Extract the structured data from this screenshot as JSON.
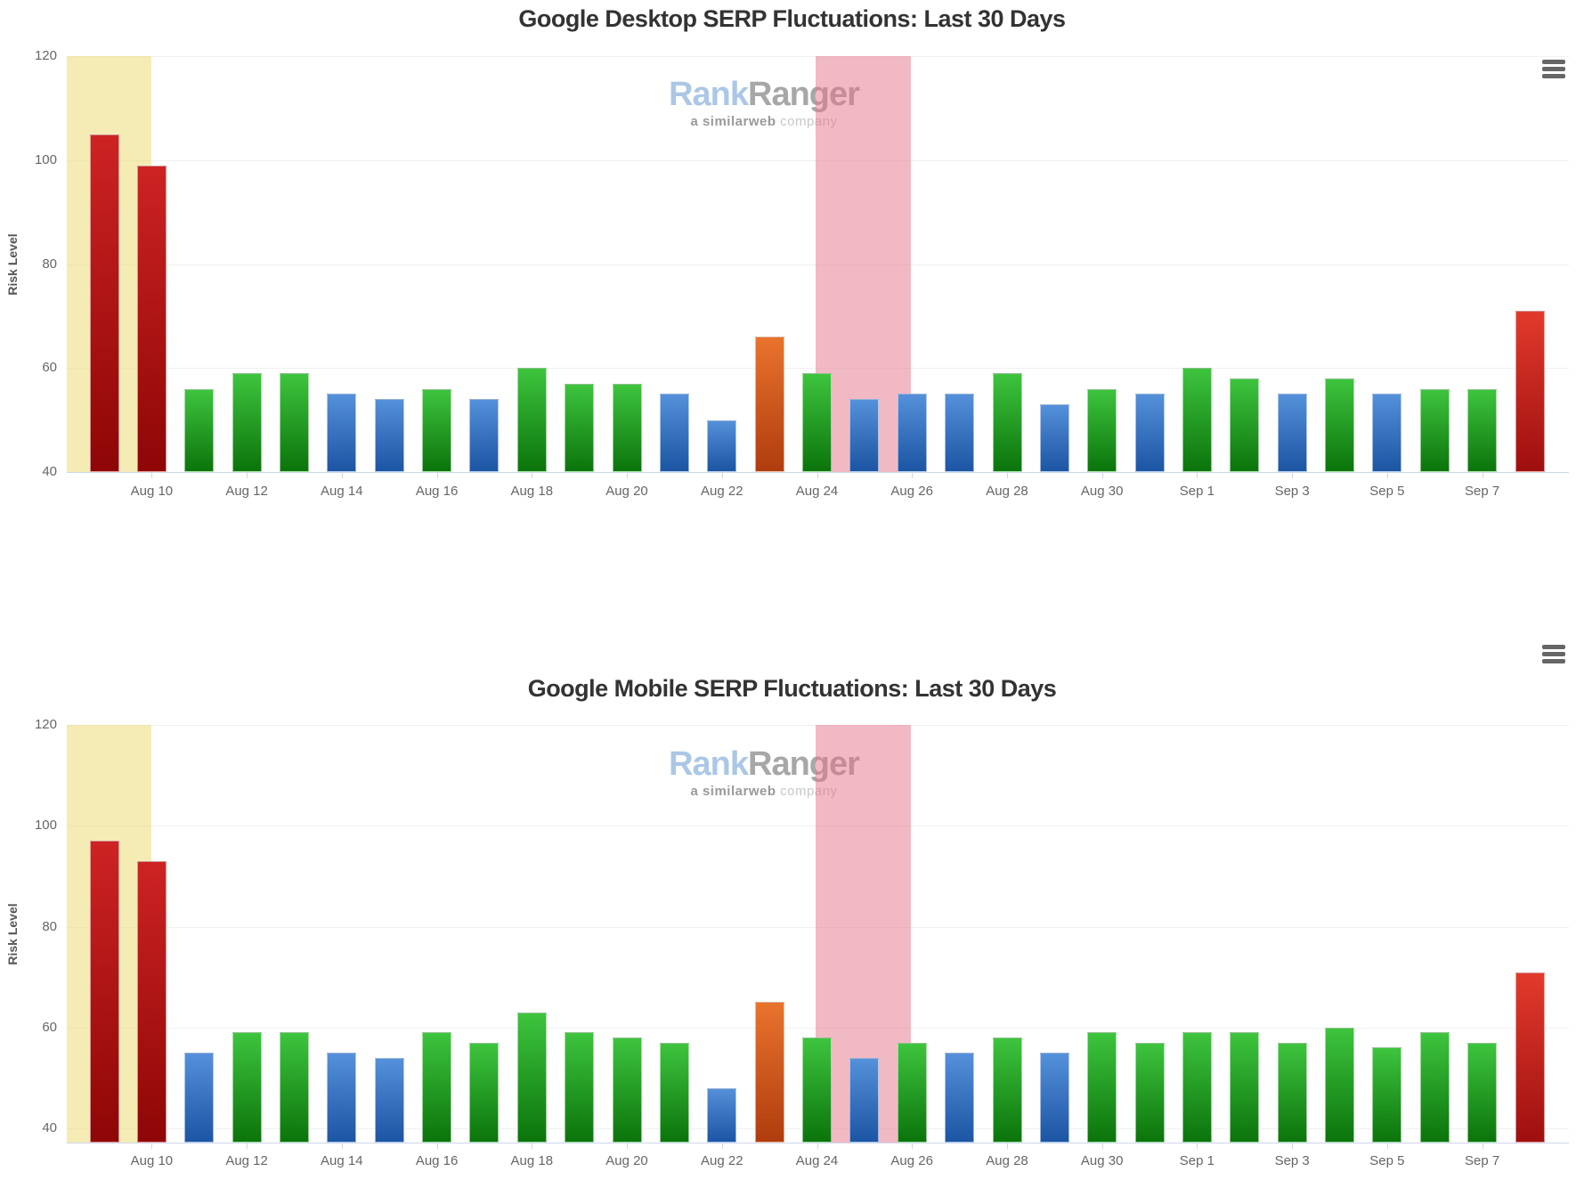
{
  "watermark": {
    "part1": "Rank",
    "part2": "Ranger",
    "tagline_bold": "a similarweb",
    "tagline_rest": " company"
  },
  "colors": {
    "green_top": "#3ec43e",
    "green_bottom": "#0b740b",
    "blue_top": "#5590da",
    "blue_bottom": "#1c55a3",
    "darkred_top": "#cd2323",
    "darkred_bottom": "#8e0606",
    "red_top": "#e23a2c",
    "red_bottom": "#9e0f0f",
    "orange_top": "#e9732d",
    "orange_bottom": "#b03c0e",
    "band_yellow": "rgba(235,217,107,0.5)",
    "band_pink": "rgba(227,115,137,0.5)",
    "grid": "#f0f0f0",
    "axis": "#ccd6eb",
    "label": "#666666",
    "title": "#333333"
  },
  "chart_data": [
    {
      "type": "bar",
      "title": "Google Desktop SERP Fluctuations: Last 30 Days",
      "ylabel": "Risk Level",
      "ylim": [
        40,
        120
      ],
      "yticks": [
        120,
        100,
        80,
        60,
        40
      ],
      "xticks": [
        "Aug 10",
        "Aug 12",
        "Aug 14",
        "Aug 16",
        "Aug 18",
        "Aug 20",
        "Aug 22",
        "Aug 24",
        "Aug 26",
        "Aug 28",
        "Aug 30",
        "Sep 1",
        "Sep 3",
        "Sep 5",
        "Sep 7"
      ],
      "x": [
        "Aug 9",
        "Aug 10",
        "Aug 11",
        "Aug 12",
        "Aug 13",
        "Aug 14",
        "Aug 15",
        "Aug 16",
        "Aug 17",
        "Aug 18",
        "Aug 19",
        "Aug 20",
        "Aug 21",
        "Aug 22",
        "Aug 23",
        "Aug 24",
        "Aug 25",
        "Aug 26",
        "Aug 27",
        "Aug 28",
        "Aug 29",
        "Aug 30",
        "Aug 31",
        "Sep 1",
        "Sep 2",
        "Sep 3",
        "Sep 4",
        "Sep 5",
        "Sep 6",
        "Sep 7",
        "Sep 8"
      ],
      "values": [
        105,
        99,
        56,
        59,
        59,
        55,
        54,
        56,
        54,
        60,
        57,
        57,
        55,
        50,
        66,
        59,
        54,
        55,
        55,
        59,
        53,
        56,
        55,
        60,
        58,
        55,
        58,
        55,
        56,
        56,
        71
      ],
      "colors": [
        "darkred",
        "darkred",
        "green",
        "green",
        "green",
        "blue",
        "blue",
        "green",
        "blue",
        "green",
        "green",
        "green",
        "blue",
        "blue",
        "orange",
        "green",
        "blue",
        "blue",
        "blue",
        "green",
        "blue",
        "green",
        "blue",
        "green",
        "green",
        "blue",
        "green",
        "blue",
        "green",
        "green",
        "red"
      ],
      "plot_bands": [
        {
          "color": "yellow",
          "from": "chart-start",
          "to": "Aug 10"
        },
        {
          "color": "pink",
          "from": "Aug 24",
          "to": "Aug 26"
        }
      ],
      "grid": true,
      "legend": "none"
    },
    {
      "type": "bar",
      "title": "Google Mobile SERP Fluctuations: Last 30 Days",
      "ylabel": "Risk Level",
      "ylim": [
        40,
        120
      ],
      "yticks": [
        120,
        100,
        80,
        60,
        40
      ],
      "xticks": [
        "Aug 10",
        "Aug 12",
        "Aug 14",
        "Aug 16",
        "Aug 18",
        "Aug 20",
        "Aug 22",
        "Aug 24",
        "Aug 26",
        "Aug 28",
        "Aug 30",
        "Sep 1",
        "Sep 3",
        "Sep 5",
        "Sep 7"
      ],
      "x": [
        "Aug 9",
        "Aug 10",
        "Aug 11",
        "Aug 12",
        "Aug 13",
        "Aug 14",
        "Aug 15",
        "Aug 16",
        "Aug 17",
        "Aug 18",
        "Aug 19",
        "Aug 20",
        "Aug 21",
        "Aug 22",
        "Aug 23",
        "Aug 24",
        "Aug 25",
        "Aug 26",
        "Aug 27",
        "Aug 28",
        "Aug 29",
        "Aug 30",
        "Aug 31",
        "Sep 1",
        "Sep 2",
        "Sep 3",
        "Sep 4",
        "Sep 5",
        "Sep 6",
        "Sep 7",
        "Sep 8"
      ],
      "values": [
        97,
        93,
        55,
        59,
        59,
        55,
        54,
        59,
        57,
        63,
        59,
        58,
        57,
        48,
        65,
        58,
        54,
        57,
        55,
        58,
        55,
        59,
        57,
        59,
        59,
        57,
        60,
        56,
        59,
        57,
        71
      ],
      "colors": [
        "darkred",
        "darkred",
        "blue",
        "green",
        "green",
        "blue",
        "blue",
        "green",
        "green",
        "green",
        "green",
        "green",
        "green",
        "blue",
        "orange",
        "green",
        "blue",
        "green",
        "blue",
        "green",
        "blue",
        "green",
        "green",
        "green",
        "green",
        "green",
        "green",
        "green",
        "green",
        "green",
        "red"
      ],
      "plot_bands": [
        {
          "color": "yellow",
          "from": "chart-start",
          "to": "Aug 10"
        },
        {
          "color": "pink",
          "from": "Aug 24",
          "to": "Aug 26"
        }
      ],
      "grid": true,
      "legend": "none"
    }
  ]
}
